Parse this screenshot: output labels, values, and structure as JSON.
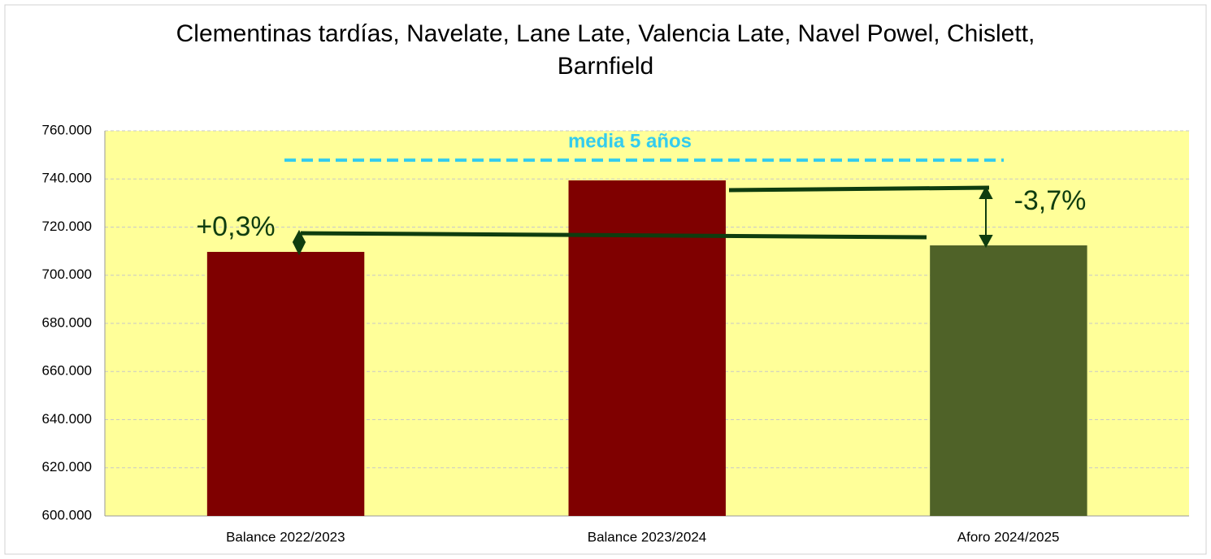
{
  "chart_data": {
    "type": "bar",
    "title": "Clementinas tardías, Navelate, Lane Late, Valencia Late, Navel Powel, Chislett, Barnfield",
    "categories": [
      "Balance 2022/2023",
      "Balance 2023/2024",
      "Aforo 2024/2025"
    ],
    "values": [
      709700,
      739400,
      712400
    ],
    "colors": [
      "#7f0000",
      "#7f0000",
      "#4f6228"
    ],
    "ylim": [
      600000,
      760000
    ],
    "yticks": [
      {
        "value": 600000,
        "label": "600.000"
      },
      {
        "value": 620000,
        "label": "620.000"
      },
      {
        "value": 640000,
        "label": "640.000"
      },
      {
        "value": 660000,
        "label": "660.000"
      },
      {
        "value": 680000,
        "label": "680.000"
      },
      {
        "value": 700000,
        "label": "700.000"
      },
      {
        "value": 720000,
        "label": "720.000"
      },
      {
        "value": 740000,
        "label": "740.000"
      },
      {
        "value": 760000,
        "label": "760.000"
      }
    ],
    "grid": true,
    "reference_line": {
      "label": "media 5 años",
      "value": 747800,
      "color": "#33ccee"
    },
    "annotations": [
      "+0,3%",
      "-3,7%"
    ]
  }
}
